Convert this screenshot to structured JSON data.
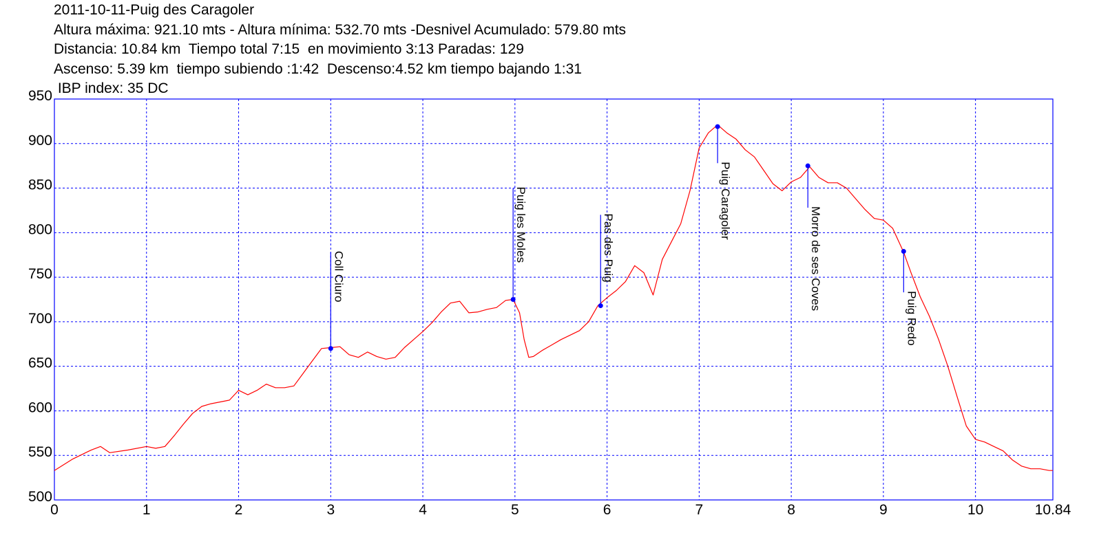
{
  "header": {
    "line1": "2011-10-11-Puig des Caragoler",
    "line2": "Altura máxima: 921.10 mts - Altura mínima: 532.70 mts -Desnivel Acumulado: 579.80 mts",
    "line3": "Distancia: 10.84 km  Tiempo total 7:15  en movimiento 3:13 Paradas: 129",
    "line4": "Ascenso: 5.39 km  tiempo subiendo :1:42  Descenso:4.52 km tiempo bajando 1:31",
    "line5": " IBP index: 35 DC"
  },
  "colors": {
    "profile": "#ff0000",
    "frame": "#0000ff",
    "grid": "#0000ff",
    "marker": "#0000ff"
  },
  "chart_data": {
    "type": "line",
    "xlim": [
      0,
      10.84
    ],
    "ylim": [
      500,
      950
    ],
    "grid": true,
    "x_ticks": [
      "0",
      "1",
      "2",
      "3",
      "4",
      "5",
      "6",
      "7",
      "8",
      "9",
      "10",
      "10.84"
    ],
    "x_tick_values": [
      0,
      1,
      2,
      3,
      4,
      5,
      6,
      7,
      8,
      9,
      10,
      10.84
    ],
    "y_ticks": [
      "500",
      "550",
      "600",
      "650",
      "700",
      "750",
      "800",
      "850",
      "900",
      "950"
    ],
    "y_tick_values": [
      500,
      550,
      600,
      650,
      700,
      750,
      800,
      850,
      900,
      950
    ],
    "series": [
      {
        "x": [
          0,
          0.2,
          0.4,
          0.5,
          0.6,
          0.8,
          1.0,
          1.1,
          1.2,
          1.3,
          1.4,
          1.5,
          1.6,
          1.7,
          1.8,
          1.9,
          2.0,
          2.1,
          2.2,
          2.3,
          2.4,
          2.5,
          2.6,
          2.7,
          2.8,
          2.9,
          3.0,
          3.1,
          3.2,
          3.3,
          3.4,
          3.5,
          3.6,
          3.7,
          3.8,
          3.9,
          4.0,
          4.1,
          4.2,
          4.3,
          4.4,
          4.5,
          4.6,
          4.7,
          4.8,
          4.9,
          4.98,
          5.05,
          5.1,
          5.15,
          5.2,
          5.3,
          5.4,
          5.5,
          5.6,
          5.7,
          5.8,
          5.9,
          6.0,
          6.1,
          6.2,
          6.3,
          6.4,
          6.5,
          6.6,
          6.7,
          6.8,
          6.9,
          7.0,
          7.1,
          7.2,
          7.3,
          7.4,
          7.5,
          7.6,
          7.7,
          7.8,
          7.9,
          8.0,
          8.1,
          8.2,
          8.3,
          8.4,
          8.5,
          8.6,
          8.7,
          8.8,
          8.9,
          9.0,
          9.1,
          9.22,
          9.3,
          9.4,
          9.5,
          9.6,
          9.7,
          9.8,
          9.9,
          10.0,
          10.1,
          10.2,
          10.3,
          10.4,
          10.5,
          10.6,
          10.7,
          10.8,
          10.84
        ],
        "y": [
          533,
          546,
          556,
          560,
          553,
          556,
          560,
          558,
          560,
          572,
          585,
          597,
          605,
          608,
          610,
          612,
          623,
          618,
          623,
          630,
          626,
          626,
          628,
          642,
          656,
          670,
          671,
          672,
          663,
          660,
          666,
          661,
          658,
          660,
          671,
          680,
          689,
          699,
          711,
          721,
          723,
          710,
          711,
          714,
          716,
          724,
          725,
          710,
          680,
          660,
          661,
          668,
          674,
          680,
          685,
          690,
          700,
          718,
          727,
          735,
          745,
          763,
          755,
          730,
          770,
          790,
          810,
          847,
          895,
          912,
          921,
          912,
          905,
          893,
          885,
          870,
          855,
          847,
          857,
          862,
          874,
          862,
          856,
          856,
          850,
          838,
          826,
          816,
          814,
          805,
          778,
          755,
          728,
          706,
          680,
          650,
          616,
          583,
          568,
          565,
          560,
          555,
          545,
          538,
          535,
          535,
          533,
          533
        ]
      }
    ],
    "annotations": [
      {
        "label": "Coll Ciuro",
        "x": 3.0,
        "y": 670,
        "text_top": 778
      },
      {
        "label": "Puig les Moles",
        "x": 4.98,
        "y": 725,
        "text_top": 850
      },
      {
        "label": "Pas des Puig",
        "x": 5.93,
        "y": 718,
        "text_top": 820
      },
      {
        "label": "Puig Caragoler",
        "x": 7.2,
        "y": 919,
        "text_top": 878
      },
      {
        "label": "Morro de ses Coves",
        "x": 8.18,
        "y": 875,
        "text_top": 828
      },
      {
        "label": "Puig Redo",
        "x": 9.22,
        "y": 779,
        "text_top": 733
      }
    ]
  }
}
